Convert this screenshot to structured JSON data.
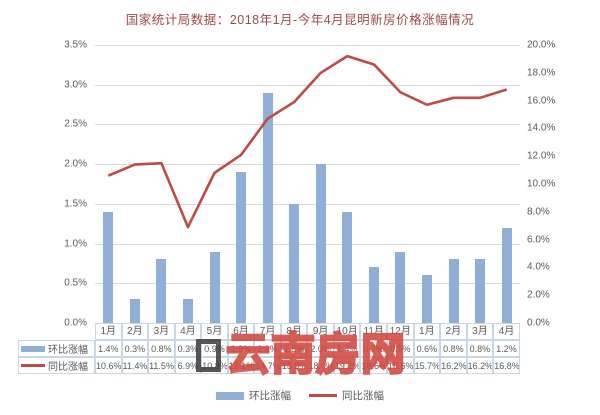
{
  "title": "国家统计局数据：2018年1月-今年4月昆明新房价格涨幅情况",
  "colors": {
    "bar": "#8FAFD6",
    "line": "#BE4B48",
    "grid": "#D9D9D9",
    "axis_text": "#595959",
    "title_text": "#9C4B47",
    "table_border": "#C9D6E4",
    "watermark": "#D24840"
  },
  "chart_data": {
    "type": "bar",
    "subtype": "combo-bar-line-dual-axis",
    "title": "国家统计局数据：2018年1月-今年4月昆明新房价格涨幅情况",
    "categories": [
      "1月",
      "2月",
      "3月",
      "4月",
      "5月",
      "6月",
      "7月",
      "8月",
      "9月",
      "10月",
      "11月",
      "12月",
      "1月",
      "2月",
      "3月",
      "4月"
    ],
    "series": [
      {
        "name": "环比涨幅",
        "type": "bar",
        "axis": "left",
        "values": [
          1.4,
          0.3,
          0.8,
          0.3,
          0.9,
          1.9,
          2.9,
          1.5,
          2.0,
          1.4,
          0.7,
          0.9,
          0.6,
          0.8,
          0.8,
          1.2
        ]
      },
      {
        "name": "同比涨幅",
        "type": "line",
        "axis": "right",
        "values": [
          10.6,
          11.4,
          11.5,
          6.9,
          10.8,
          12.1,
          14.7,
          15.9,
          18.0,
          19.2,
          18.6,
          16.6,
          15.7,
          16.2,
          16.2,
          16.8
        ]
      }
    ],
    "left_axis": {
      "min": 0,
      "max": 3.5,
      "ticks": [
        "3.5%",
        "3.0%",
        "2.5%",
        "2.0%",
        "1.5%",
        "1.0%",
        "0.5%",
        "0.0%"
      ]
    },
    "right_axis": {
      "min": 0,
      "max": 20.0,
      "ticks": [
        "20.0%",
        "18.0%",
        "16.0%",
        "14.0%",
        "12.0%",
        "10.0%",
        "8.0%",
        "6.0%",
        "4.0%",
        "2.0%",
        "0.0%"
      ]
    },
    "grid": true,
    "data_table": true,
    "legend_position": "bottom"
  },
  "legend": {
    "items": [
      {
        "label": "环比涨幅",
        "swatch": "bar-swatch-blue"
      },
      {
        "label": "同比涨幅",
        "swatch": "line-swatch-red"
      }
    ]
  },
  "watermark": {
    "text": "云南房网"
  }
}
